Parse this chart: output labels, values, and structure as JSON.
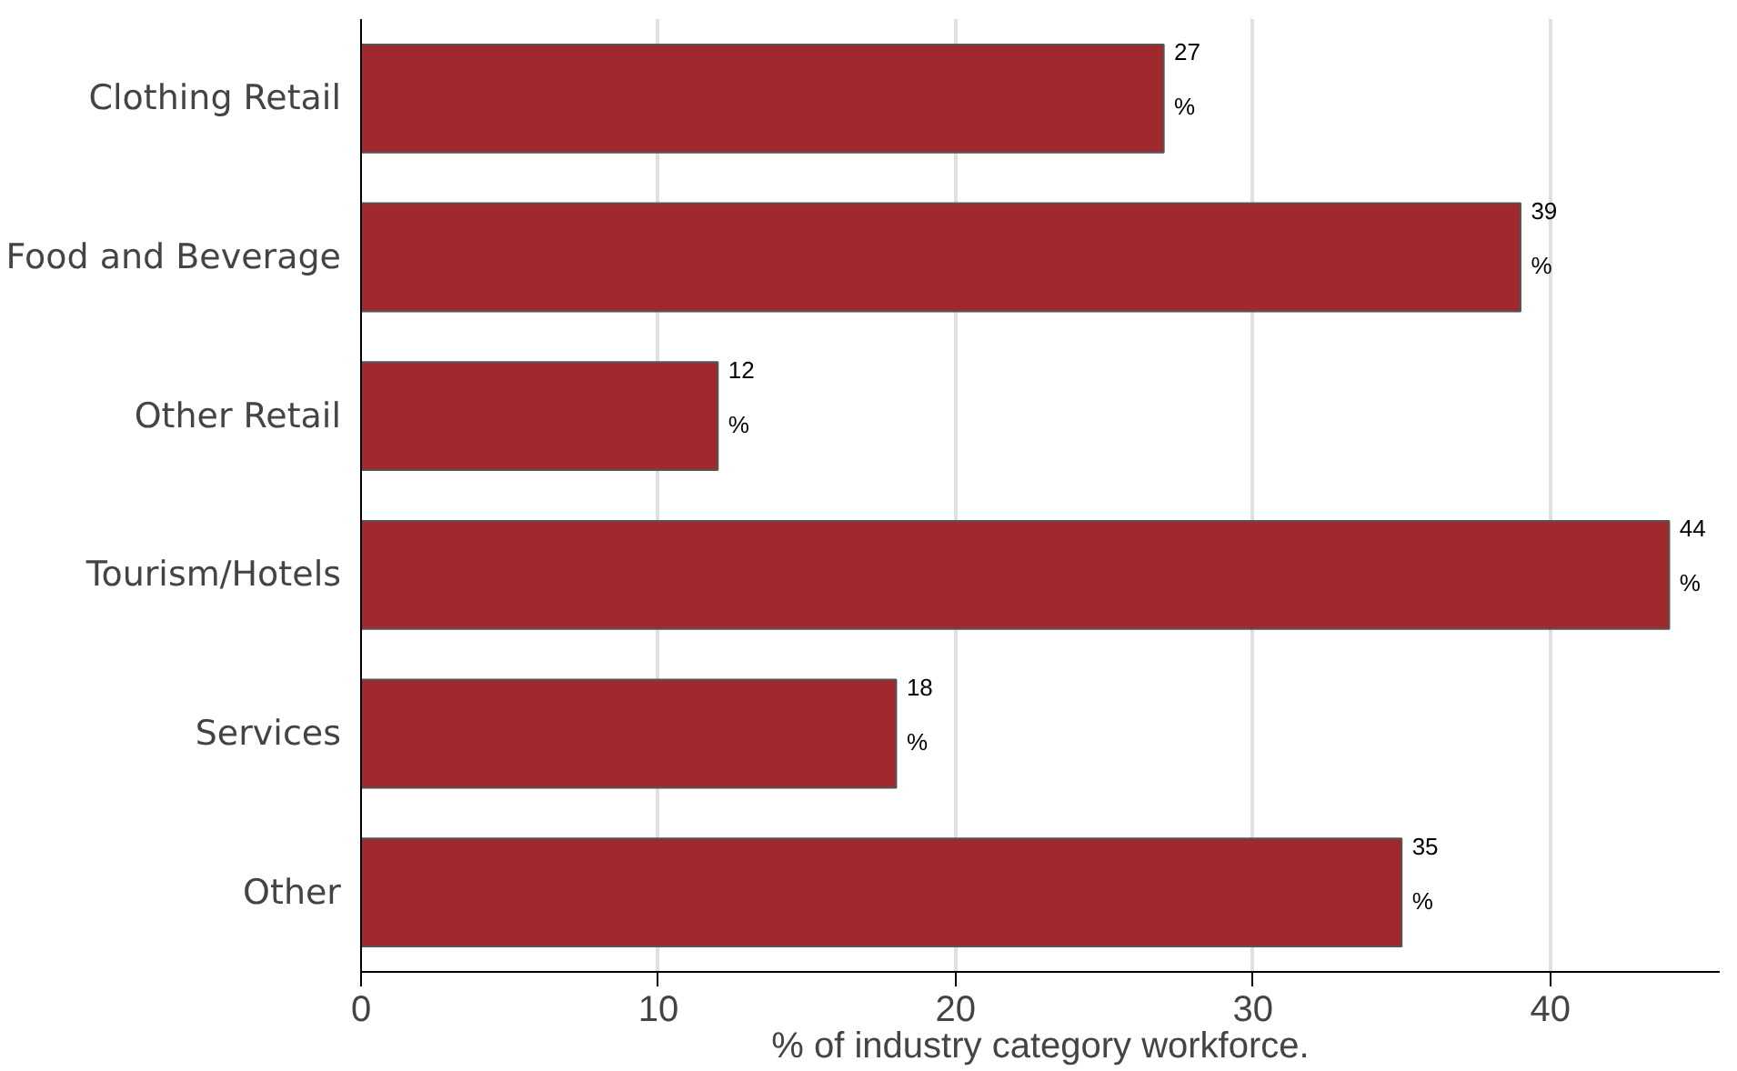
{
  "chart_data": {
    "type": "bar",
    "orientation": "horizontal",
    "xlabel": "% of industry category workforce.",
    "categories": [
      "Clothing Retail",
      "Food and Beverage",
      "Other Retail",
      "Tourism/Hotels",
      "Services",
      "Other"
    ],
    "values": [
      27,
      39,
      12,
      44,
      18,
      35
    ],
    "value_labels": [
      "27\n%",
      "39\n%",
      "12\n%",
      "44\n%",
      "18\n%",
      "35\n%"
    ],
    "color": "#a0292e",
    "xlim": [
      0,
      45.7
    ],
    "xticks": [
      0,
      10,
      20,
      30,
      40
    ],
    "grid": "x"
  }
}
